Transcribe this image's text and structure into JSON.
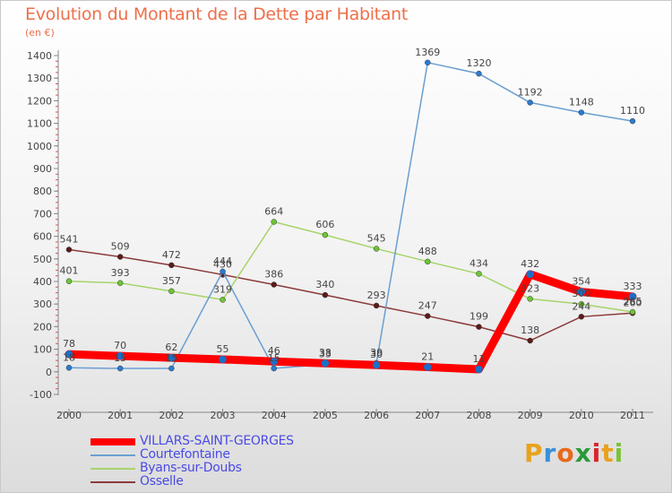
{
  "chart_data": {
    "type": "line",
    "title": "Evolution du Montant de la Dette par Habitant",
    "subtitle": "(en €)",
    "xlabel": "",
    "ylabel": "",
    "x": [
      "2000",
      "2001",
      "2002",
      "2003",
      "2004",
      "2005",
      "2006",
      "2007",
      "2008",
      "2009",
      "2010",
      "2011"
    ],
    "ylim": [
      -100,
      1400
    ],
    "yticks": [
      -100,
      0,
      100,
      200,
      300,
      400,
      500,
      600,
      700,
      800,
      900,
      1000,
      1100,
      1200,
      1300,
      1400
    ],
    "grid": false,
    "legend_position": "bottom-left",
    "series": [
      {
        "name": "VILLARS-SAINT-GEORGES",
        "color": "#ff0000",
        "marker_color": "#1a70c8",
        "emphasis": "thick",
        "values": [
          78,
          70,
          62,
          55,
          46,
          38,
          30,
          21,
          11,
          432,
          354,
          333
        ],
        "labels": [
          "78",
          "70",
          "62",
          "55",
          "46",
          "38",
          "30",
          "21",
          "11",
          "432",
          "354",
          "333"
        ]
      },
      {
        "name": "Courtefontaine",
        "color": "#6a9fd1",
        "marker_color": "#2a7bd4",
        "values": [
          18,
          15,
          15,
          444,
          15,
          33,
          39,
          1369,
          1320,
          1192,
          1148,
          1110
        ],
        "labels": [
          "18",
          "15",
          "15",
          "444",
          "15",
          "33",
          "39",
          "1369",
          "1320",
          "1192",
          "1148",
          "1110"
        ]
      },
      {
        "name": "Byans-sur-Doubs",
        "color": "#a6d46a",
        "marker_color": "#6cc634",
        "values": [
          401,
          393,
          357,
          319,
          664,
          606,
          545,
          488,
          434,
          323,
          300,
          265
        ],
        "labels": [
          "401",
          "393",
          "357",
          "319",
          "664",
          "606",
          "545",
          "488",
          "434",
          "323",
          "300",
          "265"
        ]
      },
      {
        "name": "Osselle",
        "color": "#8b3a3a",
        "marker_color": "#5c1a1a",
        "values": [
          541,
          509,
          472,
          430,
          386,
          340,
          293,
          247,
          199,
          138,
          244,
          260
        ],
        "labels": [
          "541",
          "509",
          "472",
          "430",
          "386",
          "340",
          "293",
          "247",
          "199",
          "138",
          "244",
          "260"
        ]
      }
    ]
  },
  "logo": {
    "letters": [
      "P",
      "r",
      "o",
      "x",
      "i",
      "t",
      "i"
    ],
    "colors": [
      "#e8a21c",
      "#3a8fd8",
      "#e8691c",
      "#2a9a3a",
      "#d8262a",
      "#e8a21c",
      "#7ac23a"
    ]
  }
}
